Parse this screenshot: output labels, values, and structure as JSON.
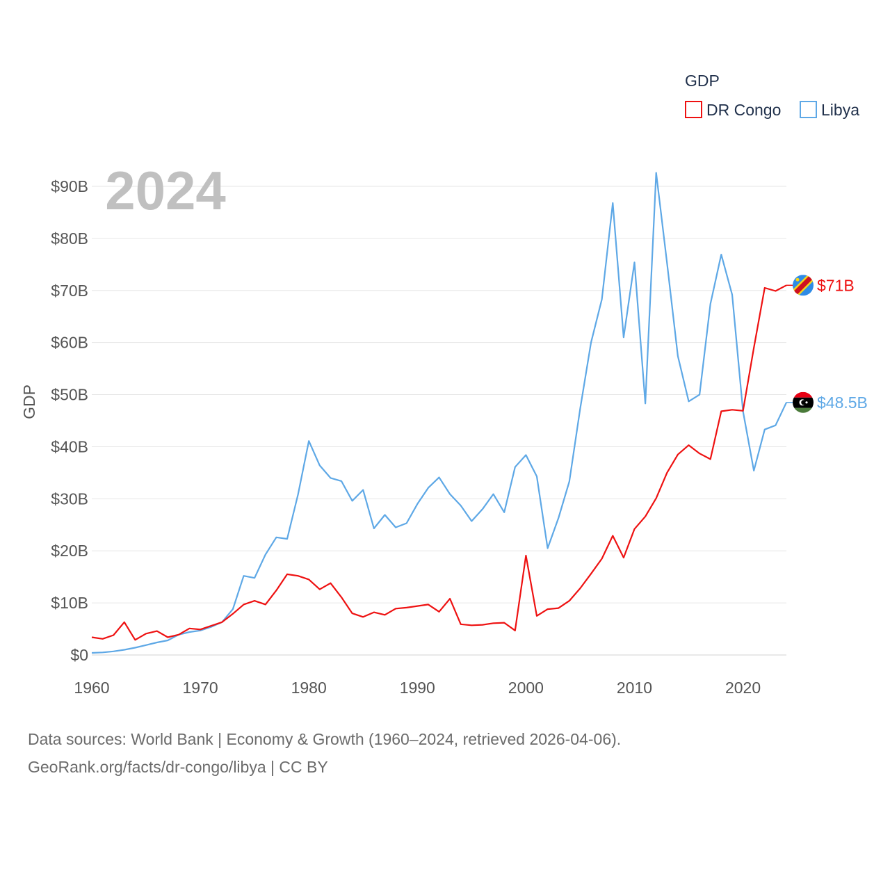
{
  "chart_data": {
    "type": "line",
    "year_label": "2024",
    "ylabel": "GDP",
    "xlabel": "",
    "ylim": [
      0,
      90
    ],
    "xlim": [
      1960,
      2024
    ],
    "y_ticks": [
      0,
      10,
      20,
      30,
      40,
      50,
      60,
      70,
      80,
      90
    ],
    "y_tick_labels": [
      "$0",
      "$10B",
      "$20B",
      "$30B",
      "$40B",
      "$50B",
      "$60B",
      "$70B",
      "$80B",
      "$90B"
    ],
    "x_ticks": [
      1960,
      1970,
      1980,
      1990,
      2000,
      2010,
      2020
    ],
    "x_tick_labels": [
      "1960",
      "1970",
      "1980",
      "1990",
      "2000",
      "2010",
      "2020"
    ],
    "legend": {
      "title": "GDP",
      "position": "top-right"
    },
    "unit": "billion USD",
    "series": [
      {
        "name": "DR Congo",
        "color": "#ee1111",
        "end_label": "$71B",
        "flag": "dr-congo-flag",
        "x": [
          1960,
          1961,
          1962,
          1963,
          1964,
          1965,
          1966,
          1967,
          1968,
          1969,
          1970,
          1971,
          1972,
          1973,
          1974,
          1975,
          1976,
          1977,
          1978,
          1979,
          1980,
          1981,
          1982,
          1983,
          1984,
          1985,
          1986,
          1987,
          1988,
          1989,
          1990,
          1991,
          1992,
          1993,
          1994,
          1995,
          1996,
          1997,
          1998,
          1999,
          2000,
          2001,
          2002,
          2003,
          2004,
          2005,
          2006,
          2007,
          2008,
          2009,
          2010,
          2011,
          2012,
          2013,
          2014,
          2015,
          2016,
          2017,
          2018,
          2019,
          2020,
          2021,
          2022,
          2023,
          2024
        ],
        "values": [
          3.4,
          3.1,
          3.8,
          6.3,
          2.9,
          4.1,
          4.6,
          3.4,
          3.9,
          5.1,
          4.9,
          5.6,
          6.3,
          7.9,
          9.7,
          10.4,
          9.7,
          12.4,
          15.5,
          15.2,
          14.5,
          12.6,
          13.8,
          11.1,
          8.0,
          7.3,
          8.2,
          7.7,
          8.9,
          9.1,
          9.4,
          9.7,
          8.3,
          10.8,
          5.9,
          5.7,
          5.8,
          6.1,
          6.2,
          4.7,
          19.1,
          7.5,
          8.8,
          9.0,
          10.4,
          12.8,
          15.6,
          18.5,
          22.9,
          18.7,
          24.2,
          26.6,
          30.1,
          35.0,
          38.5,
          40.3,
          38.7,
          37.6,
          46.8,
          47.1,
          46.9,
          59.0,
          70.5,
          69.9,
          71.0
        ]
      },
      {
        "name": "Libya",
        "color": "#5ea8e6",
        "end_label": "$48.5B",
        "flag": "libya-flag",
        "x": [
          1960,
          1961,
          1962,
          1963,
          1964,
          1965,
          1966,
          1967,
          1968,
          1969,
          1970,
          1971,
          1972,
          1973,
          1974,
          1975,
          1976,
          1977,
          1978,
          1979,
          1980,
          1981,
          1982,
          1983,
          1984,
          1985,
          1986,
          1987,
          1988,
          1989,
          1990,
          1991,
          1992,
          1993,
          1994,
          1995,
          1996,
          1997,
          1998,
          1999,
          2000,
          2001,
          2002,
          2003,
          2004,
          2005,
          2006,
          2007,
          2008,
          2009,
          2010,
          2011,
          2012,
          2013,
          2014,
          2015,
          2016,
          2017,
          2018,
          2019,
          2020,
          2021,
          2022,
          2023,
          2024
        ],
        "values": [
          0.4,
          0.5,
          0.7,
          1.0,
          1.4,
          1.9,
          2.4,
          2.8,
          3.9,
          4.4,
          4.7,
          5.4,
          6.3,
          8.8,
          15.2,
          14.8,
          19.3,
          22.6,
          22.3,
          30.8,
          41.1,
          36.4,
          34.0,
          33.4,
          29.6,
          31.7,
          24.3,
          26.9,
          24.5,
          25.3,
          29.0,
          32.1,
          34.1,
          30.9,
          28.7,
          25.7,
          28.0,
          30.9,
          27.4,
          36.1,
          38.4,
          34.3,
          20.5,
          26.3,
          33.3,
          47.3,
          60.0,
          68.3,
          86.8,
          61.0,
          75.4,
          48.3,
          92.6,
          75.3,
          57.4,
          48.7,
          50.0,
          67.4,
          76.9,
          69.2,
          46.8,
          35.4,
          43.3,
          44.1,
          48.5
        ]
      }
    ]
  },
  "footer": {
    "line1": "Data sources: World Bank | Economy & Growth (1960–2024, retrieved 2026-04-06).",
    "line2": "GeoRank.org/facts/dr-congo/libya | CC BY"
  }
}
